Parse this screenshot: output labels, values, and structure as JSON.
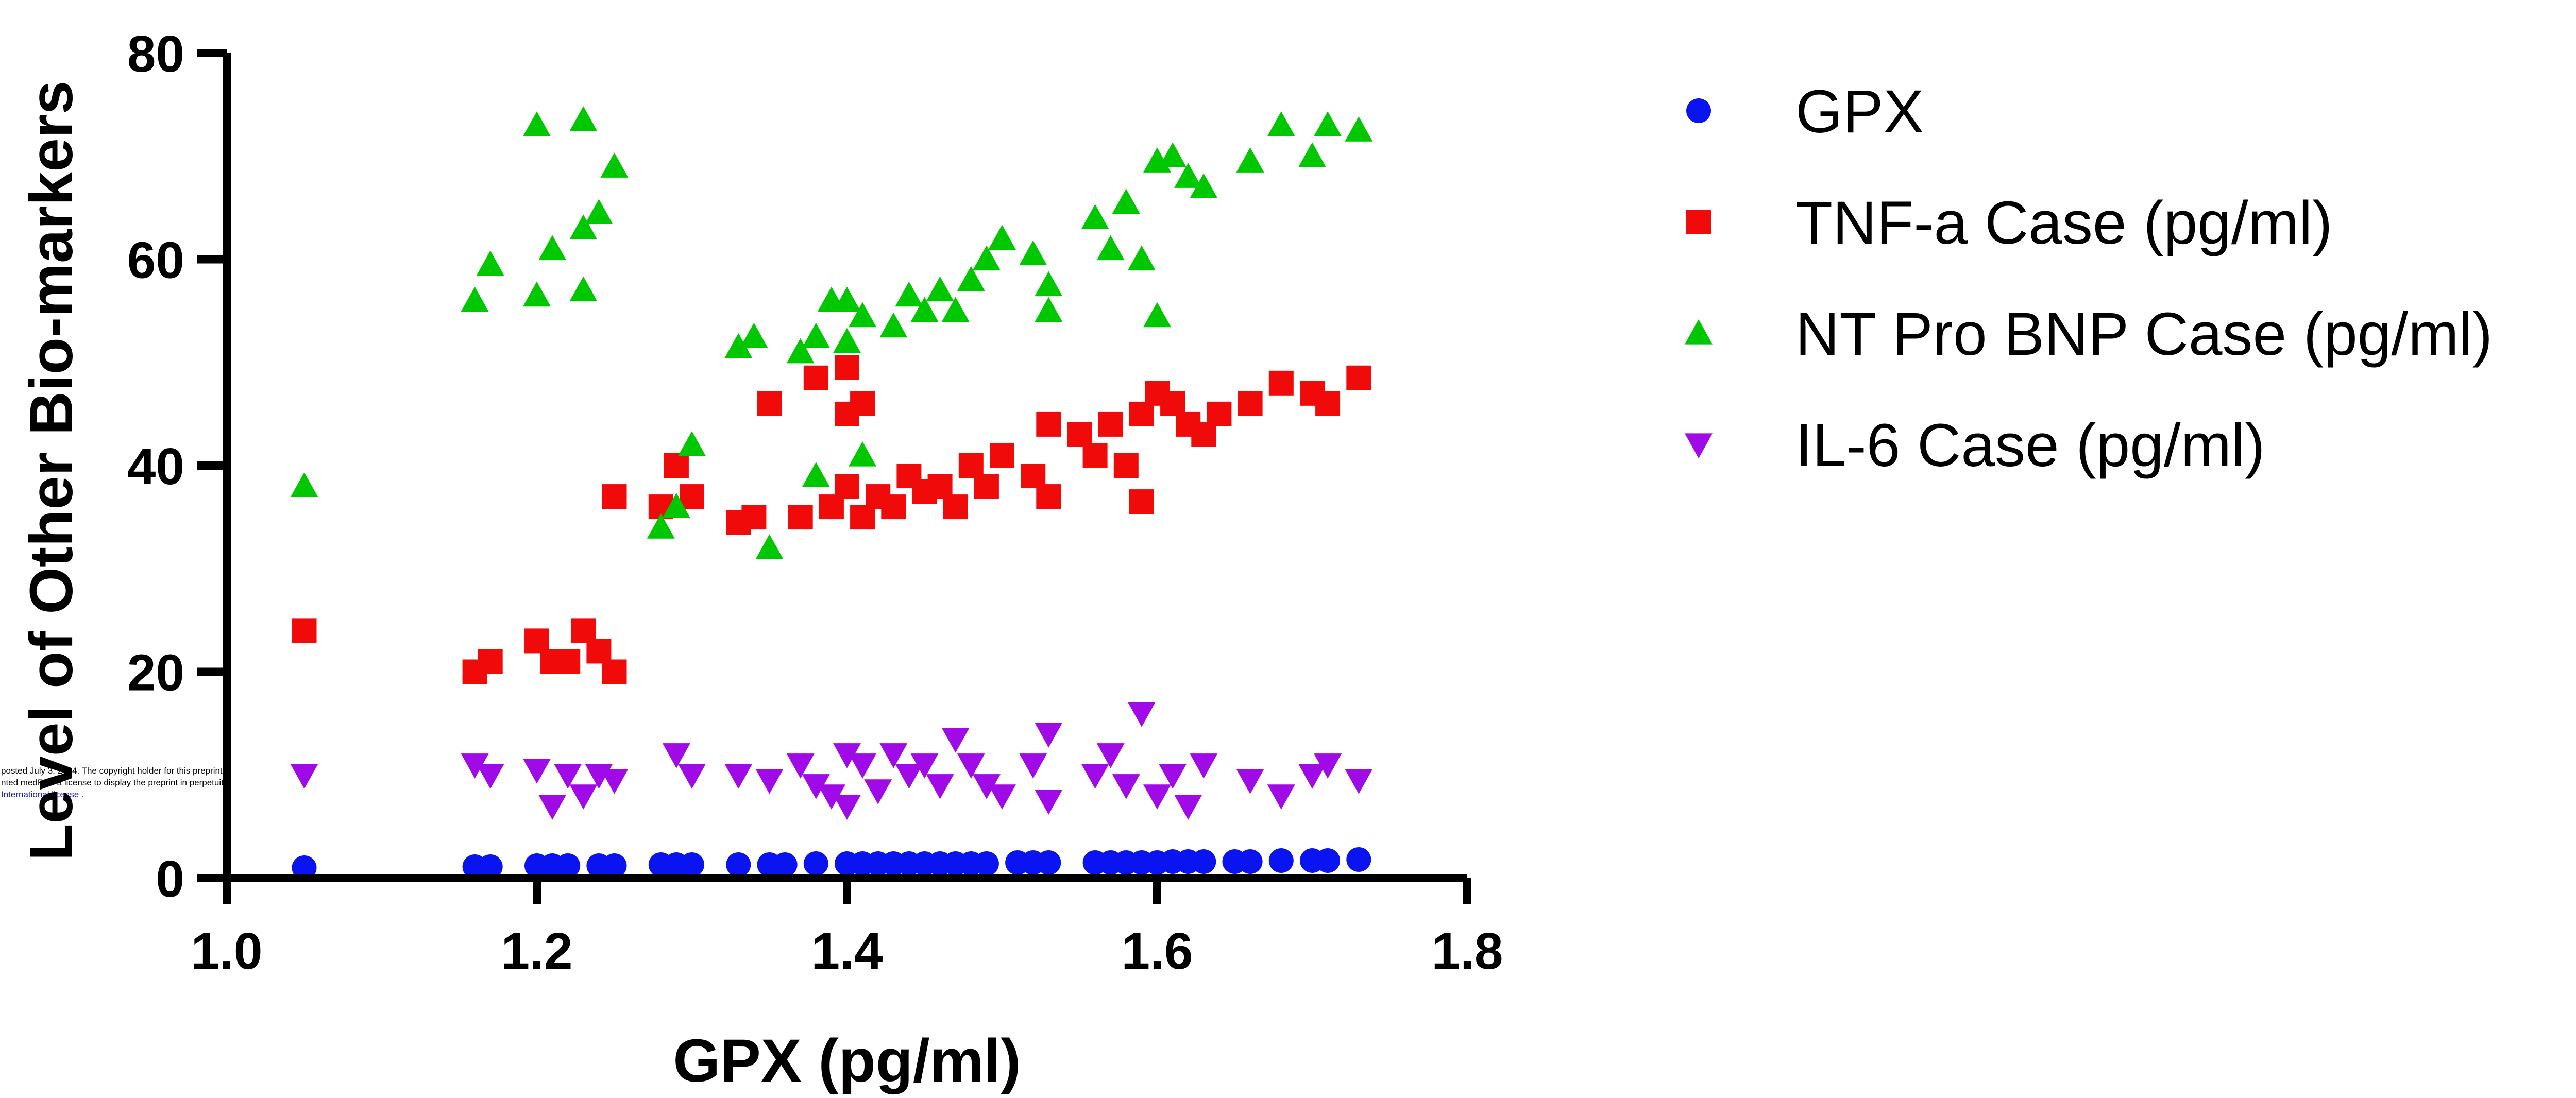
{
  "chart_data": {
    "type": "scatter",
    "title": "",
    "xlabel": "GPX (pg/ml)",
    "ylabel": "Level of Other Bio-markers",
    "xlim": [
      1.0,
      1.8
    ],
    "ylim": [
      0,
      80
    ],
    "x_ticks": [
      "1.0",
      "1.2",
      "1.4",
      "1.6",
      "1.8"
    ],
    "y_ticks": [
      "0",
      "20",
      "40",
      "60",
      "80"
    ],
    "grid": false,
    "legend_position": "right",
    "series": [
      {
        "name": "GPX",
        "marker": "circle",
        "color": "#0a14f0",
        "points": [
          [
            1.05,
            1.0
          ],
          [
            1.16,
            1.1
          ],
          [
            1.17,
            1.1
          ],
          [
            1.2,
            1.2
          ],
          [
            1.21,
            1.2
          ],
          [
            1.22,
            1.2
          ],
          [
            1.24,
            1.2
          ],
          [
            1.25,
            1.2
          ],
          [
            1.28,
            1.3
          ],
          [
            1.29,
            1.3
          ],
          [
            1.3,
            1.3
          ],
          [
            1.33,
            1.3
          ],
          [
            1.35,
            1.3
          ],
          [
            1.36,
            1.3
          ],
          [
            1.38,
            1.4
          ],
          [
            1.4,
            1.4
          ],
          [
            1.41,
            1.4
          ],
          [
            1.42,
            1.4
          ],
          [
            1.43,
            1.4
          ],
          [
            1.44,
            1.4
          ],
          [
            1.45,
            1.4
          ],
          [
            1.46,
            1.4
          ],
          [
            1.47,
            1.4
          ],
          [
            1.48,
            1.4
          ],
          [
            1.49,
            1.4
          ],
          [
            1.51,
            1.5
          ],
          [
            1.52,
            1.5
          ],
          [
            1.53,
            1.5
          ],
          [
            1.56,
            1.5
          ],
          [
            1.57,
            1.5
          ],
          [
            1.58,
            1.5
          ],
          [
            1.59,
            1.5
          ],
          [
            1.6,
            1.5
          ],
          [
            1.61,
            1.6
          ],
          [
            1.62,
            1.6
          ],
          [
            1.63,
            1.6
          ],
          [
            1.65,
            1.6
          ],
          [
            1.66,
            1.6
          ],
          [
            1.68,
            1.7
          ],
          [
            1.7,
            1.7
          ],
          [
            1.71,
            1.7
          ],
          [
            1.73,
            1.8
          ]
        ]
      },
      {
        "name": "TNF-a Case (pg/ml)",
        "marker": "square",
        "color": "#f00a0a",
        "points": [
          [
            1.05,
            24
          ],
          [
            1.16,
            20
          ],
          [
            1.17,
            21
          ],
          [
            1.2,
            23
          ],
          [
            1.21,
            21
          ],
          [
            1.22,
            21
          ],
          [
            1.23,
            24
          ],
          [
            1.24,
            22
          ],
          [
            1.25,
            20
          ],
          [
            1.25,
            37
          ],
          [
            1.28,
            36
          ],
          [
            1.29,
            40
          ],
          [
            1.3,
            37
          ],
          [
            1.33,
            34.5
          ],
          [
            1.34,
            35
          ],
          [
            1.35,
            46
          ],
          [
            1.37,
            35
          ],
          [
            1.38,
            48.5
          ],
          [
            1.39,
            36
          ],
          [
            1.4,
            49.5
          ],
          [
            1.4,
            45
          ],
          [
            1.41,
            46
          ],
          [
            1.4,
            38
          ],
          [
            1.41,
            35
          ],
          [
            1.42,
            37
          ],
          [
            1.43,
            36
          ],
          [
            1.44,
            39
          ],
          [
            1.45,
            37.5
          ],
          [
            1.46,
            38
          ],
          [
            1.47,
            36
          ],
          [
            1.48,
            40
          ],
          [
            1.49,
            38
          ],
          [
            1.5,
            41
          ],
          [
            1.52,
            39
          ],
          [
            1.53,
            44
          ],
          [
            1.53,
            37
          ],
          [
            1.55,
            43
          ],
          [
            1.56,
            41
          ],
          [
            1.57,
            44
          ],
          [
            1.58,
            40
          ],
          [
            1.59,
            36.5
          ],
          [
            1.59,
            45
          ],
          [
            1.6,
            47
          ],
          [
            1.61,
            46
          ],
          [
            1.62,
            44
          ],
          [
            1.63,
            43
          ],
          [
            1.64,
            45
          ],
          [
            1.66,
            46
          ],
          [
            1.68,
            48
          ],
          [
            1.7,
            47
          ],
          [
            1.71,
            46
          ],
          [
            1.73,
            48.5
          ]
        ]
      },
      {
        "name": "NT Pro BNP Case (pg/ml)",
        "marker": "triangle-up",
        "color": "#00c800",
        "points": [
          [
            1.05,
            38
          ],
          [
            1.16,
            56
          ],
          [
            1.17,
            59.5
          ],
          [
            1.2,
            56.5
          ],
          [
            1.2,
            73
          ],
          [
            1.21,
            61
          ],
          [
            1.23,
            73.5
          ],
          [
            1.23,
            63
          ],
          [
            1.24,
            64.5
          ],
          [
            1.23,
            57
          ],
          [
            1.25,
            69
          ],
          [
            1.28,
            34
          ],
          [
            1.29,
            36
          ],
          [
            1.3,
            42
          ],
          [
            1.33,
            51.5
          ],
          [
            1.34,
            52.5
          ],
          [
            1.35,
            32
          ],
          [
            1.37,
            51
          ],
          [
            1.38,
            52.5
          ],
          [
            1.38,
            39
          ],
          [
            1.39,
            56
          ],
          [
            1.4,
            52
          ],
          [
            1.4,
            56
          ],
          [
            1.41,
            54.5
          ],
          [
            1.41,
            41
          ],
          [
            1.43,
            53.5
          ],
          [
            1.44,
            56.5
          ],
          [
            1.45,
            55
          ],
          [
            1.46,
            57
          ],
          [
            1.47,
            55
          ],
          [
            1.48,
            58
          ],
          [
            1.49,
            60
          ],
          [
            1.5,
            62
          ],
          [
            1.52,
            60.5
          ],
          [
            1.53,
            55
          ],
          [
            1.53,
            57.5
          ],
          [
            1.56,
            64
          ],
          [
            1.57,
            61
          ],
          [
            1.58,
            65.5
          ],
          [
            1.59,
            60
          ],
          [
            1.6,
            54.5
          ],
          [
            1.6,
            69.5
          ],
          [
            1.61,
            70
          ],
          [
            1.62,
            68
          ],
          [
            1.63,
            67
          ],
          [
            1.66,
            69.5
          ],
          [
            1.68,
            73
          ],
          [
            1.7,
            70
          ],
          [
            1.71,
            73
          ],
          [
            1.73,
            72.5
          ]
        ]
      },
      {
        "name": "IL-6 Case (pg/ml)",
        "marker": "triangle-down",
        "color": "#a00ae6",
        "points": [
          [
            1.05,
            10
          ],
          [
            1.16,
            11
          ],
          [
            1.17,
            10
          ],
          [
            1.2,
            10.5
          ],
          [
            1.21,
            7
          ],
          [
            1.22,
            10
          ],
          [
            1.23,
            8
          ],
          [
            1.24,
            10
          ],
          [
            1.25,
            9.5
          ],
          [
            1.29,
            12
          ],
          [
            1.3,
            10
          ],
          [
            1.33,
            10
          ],
          [
            1.35,
            9.5
          ],
          [
            1.37,
            11
          ],
          [
            1.38,
            9
          ],
          [
            1.39,
            8
          ],
          [
            1.4,
            12
          ],
          [
            1.4,
            7
          ],
          [
            1.41,
            11
          ],
          [
            1.42,
            8.5
          ],
          [
            1.43,
            12
          ],
          [
            1.44,
            10
          ],
          [
            1.45,
            11
          ],
          [
            1.46,
            9
          ],
          [
            1.47,
            13.5
          ],
          [
            1.48,
            11
          ],
          [
            1.49,
            9
          ],
          [
            1.5,
            8
          ],
          [
            1.52,
            11
          ],
          [
            1.53,
            14
          ],
          [
            1.53,
            7.5
          ],
          [
            1.56,
            10
          ],
          [
            1.57,
            12
          ],
          [
            1.58,
            9
          ],
          [
            1.59,
            16
          ],
          [
            1.6,
            8
          ],
          [
            1.61,
            10
          ],
          [
            1.62,
            7
          ],
          [
            1.63,
            11
          ],
          [
            1.66,
            9.5
          ],
          [
            1.68,
            8
          ],
          [
            1.7,
            10
          ],
          [
            1.71,
            11
          ],
          [
            1.73,
            9.5
          ]
        ]
      }
    ]
  },
  "watermark": {
    "line1": "posted July 3, 2024. The copyright holder for this preprint",
    "line2": "nted medRxiv a license to display the preprint in perpetuity.",
    "line3": "International license ."
  }
}
